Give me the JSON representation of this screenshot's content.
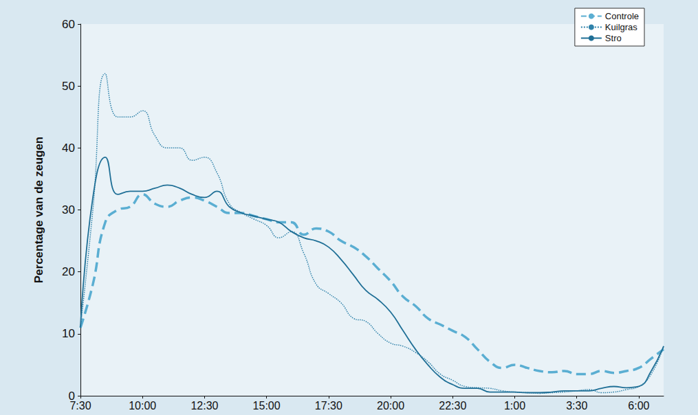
{
  "chart_data": {
    "type": "line",
    "y_label": "Percentage van de zeugen",
    "categories": [
      "7:30",
      null,
      null,
      null,
      null,
      "10:00",
      null,
      null,
      null,
      null,
      "12:30",
      null,
      null,
      null,
      null,
      "15:00",
      null,
      null,
      null,
      null,
      "17:30",
      null,
      null,
      null,
      null,
      "20:00",
      null,
      null,
      null,
      null,
      "22:30",
      null,
      null,
      null,
      null,
      "1:00",
      null,
      null,
      null,
      null,
      "3:30",
      null,
      null,
      null,
      null,
      "6:00",
      null,
      null
    ],
    "series": [
      {
        "name": "Controle",
        "color": "#5aaed2",
        "line_style": "dashed",
        "values": [
          11,
          18,
          28,
          30,
          30.5,
          32.5,
          31,
          30.5,
          31.5,
          32,
          31.5,
          30.5,
          29.5,
          29.5,
          29,
          28.5,
          28,
          28,
          26,
          27,
          26.5,
          25,
          24,
          22.5,
          20.5,
          18.5,
          16,
          14.5,
          12.5,
          11.5,
          10.5,
          9.5,
          7.5,
          5.5,
          4.5,
          5,
          4.5,
          4,
          3.8,
          4,
          3.5,
          3.5,
          4,
          3.7,
          4,
          4.5,
          6,
          7.5
        ]
      },
      {
        "name": "Kuilgras",
        "color": "#2f82aa",
        "line_style": "dotted",
        "values": [
          11,
          30,
          52,
          45,
          45,
          46,
          42,
          40,
          40,
          38,
          38.5,
          36,
          31,
          29.5,
          28.5,
          27.5,
          25.5,
          26.5,
          23,
          18,
          16.5,
          15,
          12.5,
          12,
          10,
          8.5,
          8,
          7,
          5.5,
          3.5,
          2.5,
          1.5,
          1.3,
          1.2,
          0.8,
          0.6,
          0.5,
          0.4,
          0.5,
          0.6,
          0.8,
          1,
          0.5,
          0.6,
          1,
          1.5,
          3.5,
          8
        ]
      },
      {
        "name": "Stro",
        "color": "#1f6f96",
        "line_style": "solid",
        "values": [
          11,
          32,
          38.5,
          32.5,
          33,
          33,
          33.5,
          34,
          33.5,
          32.5,
          32,
          33,
          30.5,
          29.5,
          29,
          28.5,
          28,
          26.5,
          25.5,
          25,
          24,
          22,
          19.5,
          17,
          15.5,
          13.5,
          10.5,
          7.5,
          5,
          3,
          1.8,
          1.2,
          1.2,
          0.6,
          0.6,
          0.6,
          0.5,
          0.5,
          0.6,
          0.8,
          0.8,
          0.8,
          1.2,
          1.5,
          1.3,
          1.5,
          4,
          8
        ]
      }
    ],
    "ylim": [
      0,
      60
    ],
    "yticks": [
      0,
      10,
      20,
      30,
      40,
      50,
      60
    ],
    "grid": false,
    "legend": "top-right"
  }
}
